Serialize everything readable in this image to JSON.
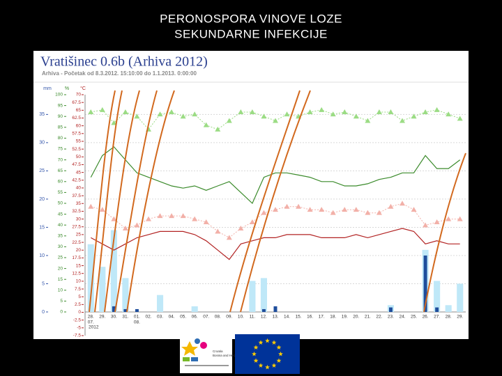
{
  "slide": {
    "title_lines": [
      "PERONOSPORA VINOVE LOZE",
      "SEKUNDARNE INFEKCIJE"
    ],
    "logo_text": [
      "Croatia",
      "Bosnia and Herzegovina"
    ]
  },
  "chart_data": {
    "type": "line",
    "title": "Vratišinec 0.6b (Arhiva 2012)",
    "subtitle": "Arhiva - Početak od 8.3.2012. 15:10:00 do 1.1.2013. 0:00:00",
    "categories": [
      "28.",
      "29.",
      "30.",
      "31.",
      "01.",
      "02.",
      "03.",
      "04.",
      "05.",
      "06.",
      "07.",
      "08.",
      "09.",
      "10.",
      "11.",
      "12.",
      "13.",
      "14.",
      "15.",
      "16.",
      "17.",
      "18.",
      "19.",
      "20.",
      "21.",
      "22.",
      "23.",
      "24.",
      "25.",
      "26.",
      "27.",
      "28.",
      "29."
    ],
    "month_labels": [
      "07.",
      "2012",
      "08."
    ],
    "y_unit": "mm",
    "y2_unit": "%",
    "y3_unit": "°C",
    "ylim": [
      0,
      38.5
    ],
    "yticks": [
      0,
      5,
      10,
      15,
      20,
      25,
      30,
      35
    ],
    "y2lim": [
      0,
      100
    ],
    "y2ticks": [
      0,
      5,
      10,
      15,
      20,
      25,
      30,
      35,
      40,
      45,
      50,
      55,
      60,
      65,
      70,
      75,
      80,
      85,
      90,
      95,
      100
    ],
    "y3lim": [
      -7.5,
      70
    ],
    "y3ticks": [
      -7.5,
      -5,
      -2.5,
      0,
      2.5,
      5,
      7.5,
      10,
      12.5,
      15,
      17.5,
      20,
      22.5,
      25,
      27.5,
      30,
      32.5,
      35,
      37.5,
      40,
      42.5,
      45,
      47.5,
      50,
      52.5,
      55,
      57.5,
      60,
      62.5,
      65,
      67.5,
      70
    ],
    "grid": true,
    "series": [
      {
        "type": "bar",
        "color": "#bfe8f8",
        "values": [
          12,
          8,
          14.5,
          6,
          0,
          0,
          3,
          0,
          0,
          1,
          0,
          0,
          0,
          0,
          5.5,
          6,
          0,
          0,
          0,
          0,
          0,
          0,
          0,
          0,
          0,
          0,
          1.2,
          0,
          0,
          11,
          5.5,
          1.2,
          5
        ]
      },
      {
        "type": "bar",
        "color": "#1f4e9c",
        "values": [
          0,
          0,
          1,
          0.5,
          0.5,
          0,
          0,
          0,
          0,
          0,
          0,
          0,
          0,
          0,
          0,
          0.5,
          1,
          0,
          0,
          0,
          0,
          0,
          0,
          0,
          0,
          0,
          0.8,
          0,
          0,
          10,
          0.8,
          0,
          0
        ]
      },
      {
        "type": "line",
        "marker": "triangle",
        "color": "#9bdc84",
        "axis": "y2",
        "values": [
          92,
          93,
          87,
          92,
          90,
          84,
          91,
          92,
          90,
          91,
          86,
          84,
          88,
          92,
          92,
          90,
          88,
          91,
          90,
          92,
          93,
          91,
          92,
          90,
          88,
          92,
          92,
          88,
          90,
          92,
          93,
          91,
          89
        ]
      },
      {
        "type": "line",
        "color": "#3a8a2a",
        "axis": "y2",
        "values": [
          62,
          72,
          76,
          70,
          64,
          62,
          60,
          58,
          57,
          58,
          56,
          58,
          60,
          55,
          50,
          62,
          64,
          64,
          63,
          62,
          60,
          60,
          58,
          58,
          59,
          61,
          62,
          64,
          64,
          72,
          66,
          66,
          70
        ]
      },
      {
        "type": "line",
        "marker": "triangle",
        "color": "#f2b0a8",
        "axis": "y3",
        "values": [
          34,
          33,
          30,
          27,
          28,
          30,
          31,
          31,
          31,
          30,
          29,
          26,
          24,
          27,
          29,
          32,
          33,
          34,
          34,
          33,
          33,
          32,
          33,
          33,
          32,
          32,
          34,
          35,
          33,
          28,
          29,
          30,
          30
        ]
      },
      {
        "type": "line",
        "color": "#b22222",
        "axis": "y3",
        "values": [
          24,
          22,
          20,
          22,
          24,
          25,
          26,
          26,
          26,
          25,
          23,
          20,
          17,
          22,
          23,
          24,
          24,
          25,
          25,
          25,
          24,
          24,
          24,
          25,
          24,
          25,
          26,
          27,
          26,
          22,
          23,
          22,
          22
        ]
      }
    ]
  }
}
